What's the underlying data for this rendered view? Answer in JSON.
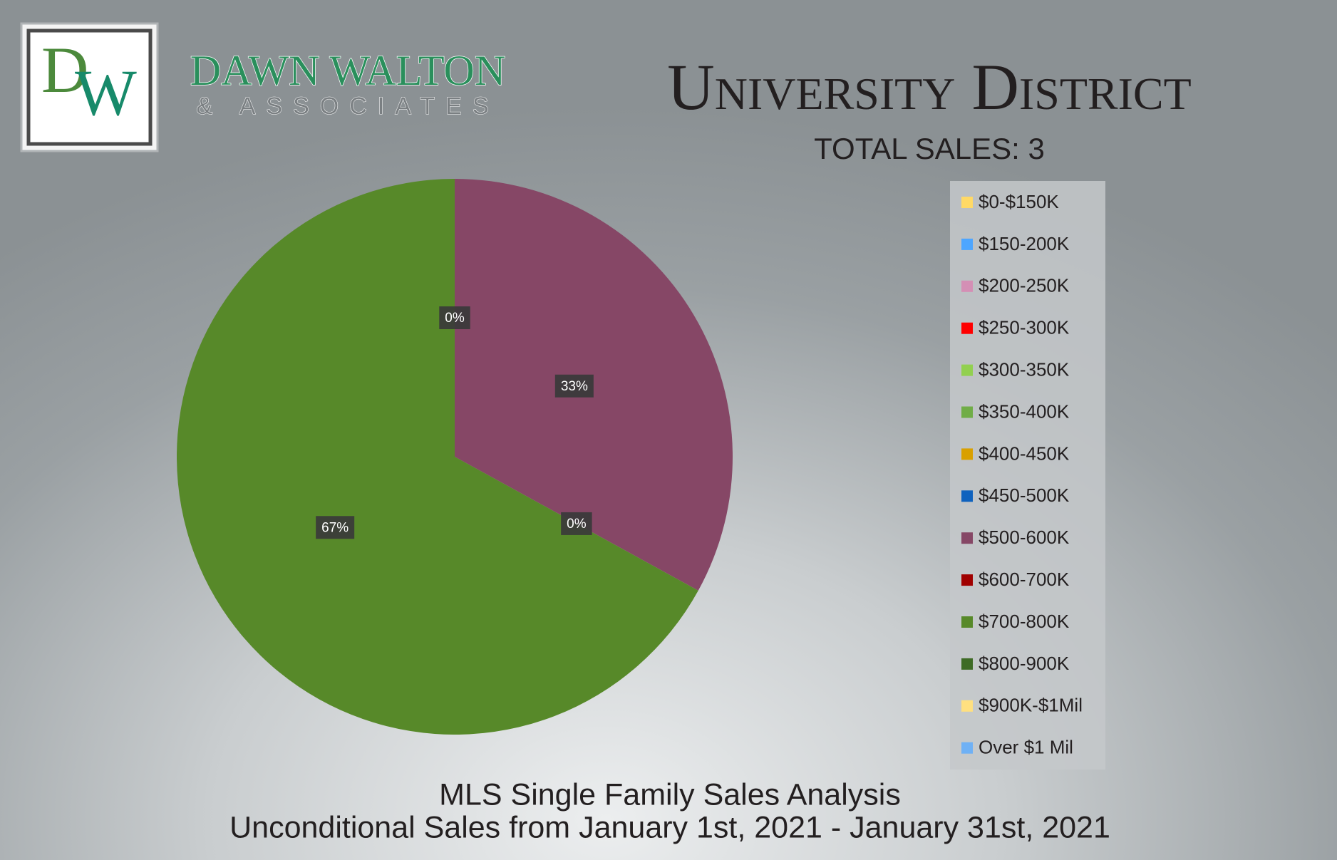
{
  "logo": {
    "letters": [
      "D",
      "W"
    ],
    "name": "DAWN WALTON",
    "tagline": "& ASSOCIATES"
  },
  "chart_data": {
    "type": "pie",
    "title": "University District",
    "subtitle": "TOTAL SALES: 3",
    "footnote": [
      "MLS Single Family Sales Analysis",
      "Unconditional Sales from January 1st, 2021 - January 31st, 2021"
    ],
    "categories": [
      "$0-$150K",
      "$150-200K",
      "$200-250K",
      "$250-300K",
      "$300-350K",
      "$350-400K",
      "$400-450K",
      "$450-500K",
      "$500-600K",
      "$600-700K",
      "$700-800K",
      "$800-900K",
      "$900K-$1Mil",
      "Over $1 Mil"
    ],
    "values": [
      0,
      0,
      0,
      0,
      0,
      0,
      0,
      0,
      33,
      0,
      67,
      0,
      0,
      0
    ],
    "value_labels": [
      null,
      null,
      null,
      null,
      null,
      null,
      null,
      "0%",
      "33%",
      "0%",
      "67%",
      null,
      null,
      null
    ],
    "colors": [
      "#ffd966",
      "#4da6ff",
      "#d48fb5",
      "#ff0000",
      "#92d050",
      "#70ad47",
      "#d9a000",
      "#0f62be",
      "#864766",
      "#a00000",
      "#578929",
      "#3e6b25",
      "#ffe080",
      "#6fb1f5"
    ],
    "legend": "right"
  }
}
